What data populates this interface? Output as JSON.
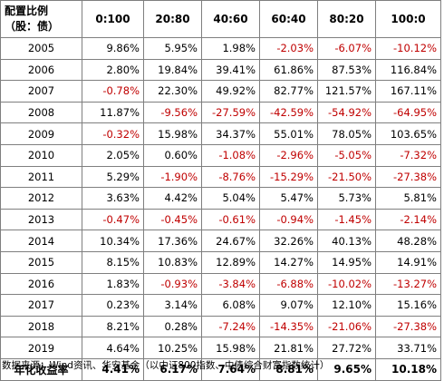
{
  "table": {
    "corner_header": "配置比例（股：债）",
    "columns": [
      "0:100",
      "20:80",
      "40:60",
      "60:40",
      "80:20",
      "100:0"
    ],
    "rows": [
      {
        "year": "2005",
        "values": [
          "9.86%",
          "5.95%",
          "1.98%",
          "-2.03%",
          "-6.07%",
          "-10.12%"
        ]
      },
      {
        "year": "2006",
        "values": [
          "2.80%",
          "19.84%",
          "39.41%",
          "61.86%",
          "87.53%",
          "116.84%"
        ]
      },
      {
        "year": "2007",
        "values": [
          "-0.78%",
          "22.30%",
          "49.92%",
          "82.77%",
          "121.57%",
          "167.11%"
        ]
      },
      {
        "year": "2008",
        "values": [
          "11.87%",
          "-9.56%",
          "-27.59%",
          "-42.59%",
          "-54.92%",
          "-64.95%"
        ]
      },
      {
        "year": "2009",
        "values": [
          "-0.32%",
          "15.98%",
          "34.37%",
          "55.01%",
          "78.05%",
          "103.65%"
        ]
      },
      {
        "year": "2010",
        "values": [
          "2.05%",
          "0.60%",
          "-1.08%",
          "-2.96%",
          "-5.05%",
          "-7.32%"
        ]
      },
      {
        "year": "2011",
        "values": [
          "5.29%",
          "-1.90%",
          "-8.76%",
          "-15.29%",
          "-21.50%",
          "-27.38%"
        ]
      },
      {
        "year": "2012",
        "values": [
          "3.63%",
          "4.42%",
          "5.04%",
          "5.47%",
          "5.73%",
          "5.81%"
        ]
      },
      {
        "year": "2013",
        "values": [
          "-0.47%",
          "-0.45%",
          "-0.61%",
          "-0.94%",
          "-1.45%",
          "-2.14%"
        ]
      },
      {
        "year": "2014",
        "values": [
          "10.34%",
          "17.36%",
          "24.67%",
          "32.26%",
          "40.13%",
          "48.28%"
        ]
      },
      {
        "year": "2015",
        "values": [
          "8.15%",
          "10.83%",
          "12.89%",
          "14.27%",
          "14.95%",
          "14.91%"
        ]
      },
      {
        "year": "2016",
        "values": [
          "1.83%",
          "-0.93%",
          "-3.84%",
          "-6.88%",
          "-10.02%",
          "-13.27%"
        ]
      },
      {
        "year": "2017",
        "values": [
          "0.23%",
          "3.14%",
          "6.08%",
          "9.07%",
          "12.10%",
          "15.16%"
        ]
      },
      {
        "year": "2018",
        "values": [
          "8.21%",
          "0.28%",
          "-7.24%",
          "-14.35%",
          "-21.06%",
          "-27.38%"
        ]
      },
      {
        "year": "2019",
        "values": [
          "4.64%",
          "10.25%",
          "15.98%",
          "21.81%",
          "27.72%",
          "33.71%"
        ]
      }
    ],
    "total": {
      "label": "年化收益率",
      "values": [
        "4.41%",
        "6.17%",
        "7.64%",
        "8.81%",
        "9.65%",
        "10.18%"
      ]
    }
  },
  "colors": {
    "negative": "#c00000",
    "border": "#7f7f7f"
  },
  "source_note": "数据来源：Wind资讯、华安基金（以中证800指数、中债综合财富指数统计）"
}
